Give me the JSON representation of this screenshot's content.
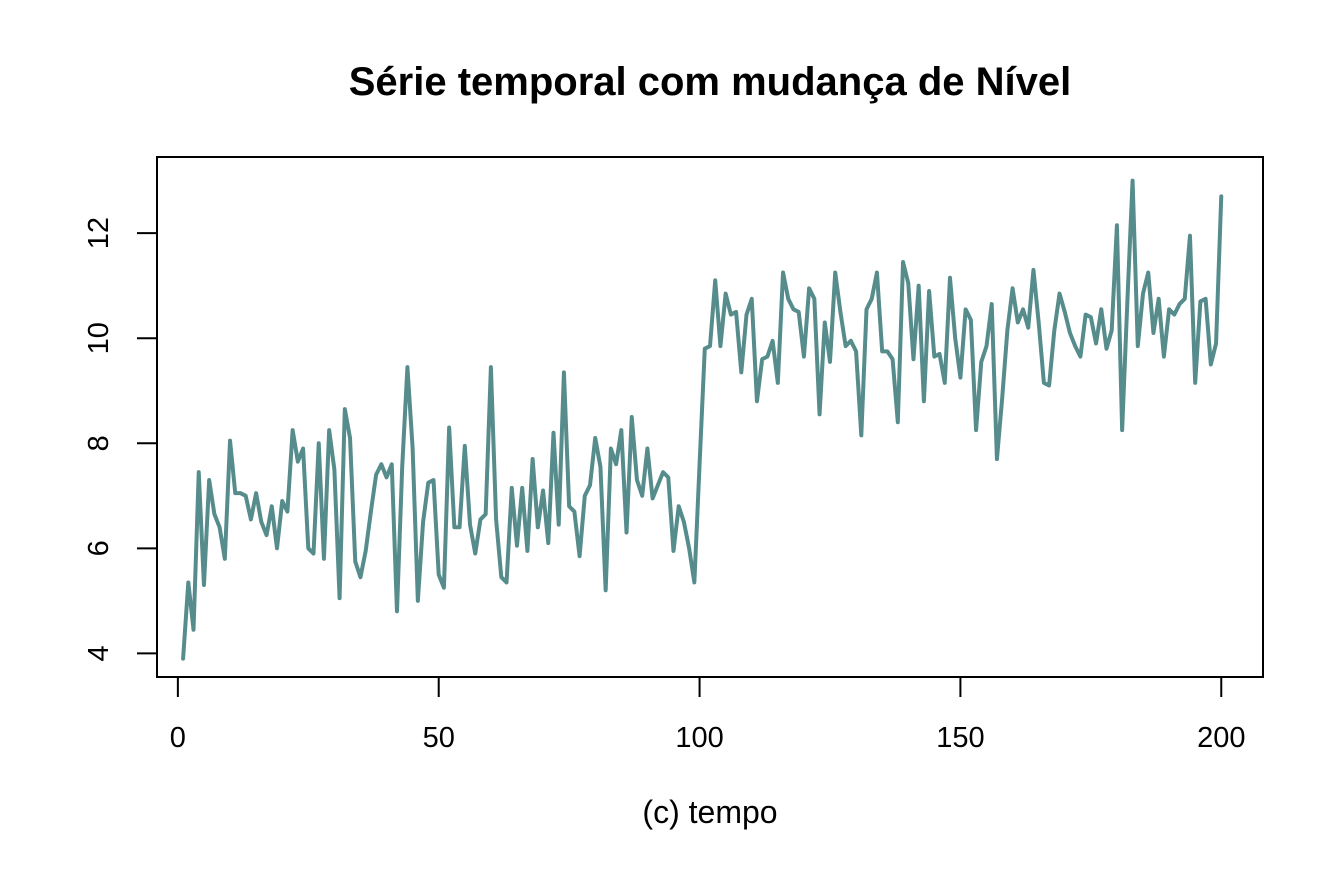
{
  "chart_data": {
    "type": "line",
    "title": "Série temporal com mudança de Nível",
    "xlabel": "(c) tempo",
    "ylabel": "",
    "xlim": [
      -4,
      208
    ],
    "ylim": [
      3.55,
      13.45
    ],
    "x_ticks": [
      0,
      50,
      100,
      150,
      200
    ],
    "y_ticks": [
      4,
      6,
      8,
      10,
      12
    ],
    "grid": false,
    "line_color": "#578C8C",
    "series": [
      {
        "x_start": 1,
        "x_step": 1,
        "values": [
          3.9,
          5.35,
          4.45,
          7.45,
          5.3,
          7.3,
          6.65,
          6.4,
          5.8,
          8.05,
          7.05,
          7.05,
          7.0,
          6.55,
          7.05,
          6.5,
          6.25,
          6.8,
          6.0,
          6.9,
          6.7,
          8.25,
          7.65,
          7.9,
          6.0,
          5.9,
          8.0,
          5.8,
          8.25,
          7.5,
          5.05,
          8.65,
          8.1,
          5.75,
          5.45,
          5.95,
          6.7,
          7.4,
          7.6,
          7.35,
          7.6,
          4.8,
          7.55,
          9.45,
          7.9,
          5.0,
          6.5,
          7.25,
          7.3,
          5.5,
          5.25,
          8.3,
          6.4,
          6.4,
          7.95,
          6.45,
          5.9,
          6.55,
          6.65,
          9.45,
          6.55,
          5.45,
          5.35,
          7.15,
          6.05,
          7.15,
          5.95,
          7.7,
          6.4,
          7.1,
          6.1,
          8.2,
          6.45,
          9.35,
          6.8,
          6.7,
          5.85,
          7.0,
          7.2,
          8.1,
          7.55,
          5.2,
          7.9,
          7.6,
          8.25,
          6.3,
          8.5,
          7.3,
          7.0,
          7.9,
          6.95,
          7.2,
          7.45,
          7.35,
          5.95,
          6.8,
          6.5,
          6.0,
          5.35,
          7.6,
          9.8,
          9.85,
          11.1,
          9.85,
          10.85,
          10.45,
          10.5,
          9.35,
          10.45,
          10.75,
          8.8,
          9.6,
          9.65,
          9.95,
          9.15,
          11.25,
          10.75,
          10.55,
          10.5,
          9.65,
          10.95,
          10.75,
          8.55,
          10.3,
          9.55,
          11.25,
          10.5,
          9.85,
          9.95,
          9.75,
          8.15,
          10.55,
          10.75,
          11.25,
          9.75,
          9.75,
          9.6,
          8.4,
          11.45,
          11.05,
          9.6,
          11.0,
          8.8,
          10.9,
          9.65,
          9.7,
          9.15,
          11.15,
          10.0,
          9.25,
          10.55,
          10.35,
          8.25,
          9.55,
          9.85,
          10.65,
          7.7,
          8.85,
          10.15,
          10.95,
          10.3,
          10.55,
          10.2,
          11.3,
          10.3,
          9.15,
          9.1,
          10.15,
          10.85,
          10.5,
          10.1,
          9.85,
          9.65,
          10.45,
          10.4,
          9.9,
          10.55,
          9.8,
          10.15,
          12.15,
          8.25,
          10.7,
          13.0,
          9.85,
          10.85,
          11.25,
          10.1,
          10.75,
          9.65,
          10.55,
          10.45,
          10.65,
          10.75,
          11.95,
          9.15,
          10.7,
          10.75,
          9.5,
          9.9,
          12.7
        ]
      }
    ]
  }
}
